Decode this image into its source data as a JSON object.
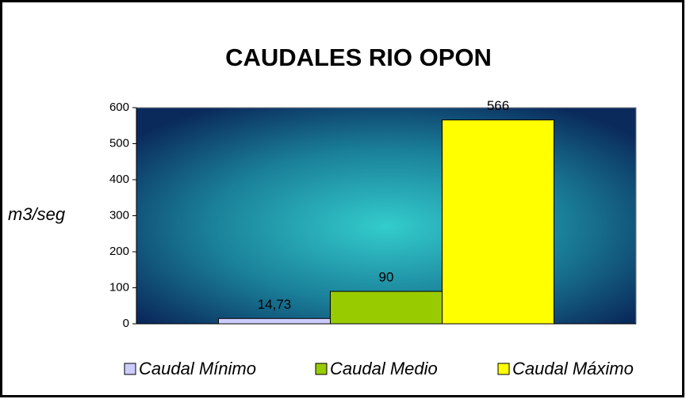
{
  "chart_data": {
    "type": "bar",
    "title": "CAUDALES RIO OPON",
    "y_label": "m3/seg",
    "series": [
      {
        "name": "Caudal Mínimo",
        "color": "#ccccff",
        "values": [
          14.73
        ],
        "value_labels": [
          "14,73"
        ]
      },
      {
        "name": "Caudal Medio",
        "color": "#99cc00",
        "values": [
          90
        ]
      },
      {
        "name": "Caudal Máximo",
        "color": "#ffff00",
        "values": [
          566
        ]
      }
    ],
    "ylim": [
      0,
      600
    ],
    "yticks": [
      0,
      100,
      200,
      300,
      400,
      500,
      600
    ],
    "grid": false,
    "legend": "bottom"
  }
}
